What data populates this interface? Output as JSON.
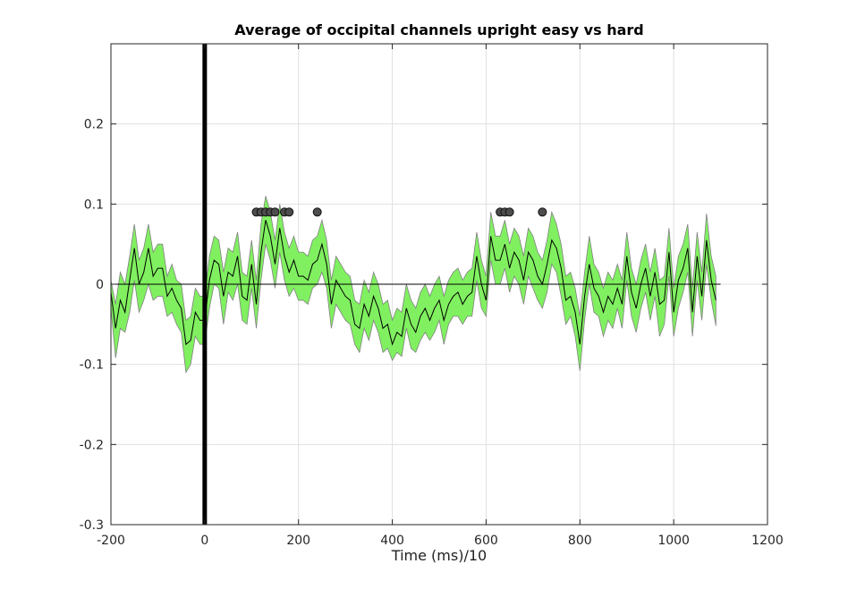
{
  "chart_data": {
    "type": "line",
    "title": "Average of occipital channels upright easy vs hard",
    "xlabel": "Time (ms)/10",
    "ylabel": "",
    "xlim": [
      -200,
      1200
    ],
    "ylim": [
      -0.3,
      0.3
    ],
    "xticks": [
      -200,
      0,
      200,
      400,
      600,
      800,
      1000,
      1200
    ],
    "xtick_labels": [
      "-200",
      "0",
      "200",
      "400",
      "600",
      "800",
      "1000",
      "1200"
    ],
    "yticks": [
      -0.3,
      -0.2,
      -0.1,
      0,
      0.1,
      0.2
    ],
    "ytick_labels": [
      "-0.3",
      "-0.2",
      "-0.1",
      "0",
      "0.1",
      "0.2"
    ],
    "grid": true,
    "zero_line": 0,
    "onset_line_x": 0,
    "x": [
      -200,
      -190,
      -180,
      -170,
      -160,
      -150,
      -140,
      -130,
      -120,
      -110,
      -100,
      -90,
      -80,
      -70,
      -60,
      -50,
      -40,
      -30,
      -20,
      -10,
      0,
      10,
      20,
      30,
      40,
      50,
      60,
      70,
      80,
      90,
      100,
      110,
      120,
      130,
      140,
      150,
      160,
      170,
      180,
      190,
      200,
      210,
      220,
      230,
      240,
      250,
      260,
      270,
      280,
      290,
      300,
      310,
      320,
      330,
      340,
      350,
      360,
      370,
      380,
      390,
      400,
      410,
      420,
      430,
      440,
      450,
      460,
      470,
      480,
      490,
      500,
      510,
      520,
      530,
      540,
      550,
      560,
      570,
      580,
      590,
      600,
      610,
      620,
      630,
      640,
      650,
      660,
      670,
      680,
      690,
      700,
      710,
      720,
      730,
      740,
      750,
      760,
      770,
      780,
      790,
      800,
      810,
      820,
      830,
      840,
      850,
      860,
      870,
      880,
      890,
      900,
      910,
      920,
      930,
      940,
      950,
      960,
      970,
      980,
      990,
      1000,
      1010,
      1020,
      1030,
      1040,
      1050,
      1060,
      1070,
      1080,
      1090
    ],
    "series": [
      {
        "type": "line",
        "color": "#000000",
        "values": [
          -0.01,
          -0.055,
          -0.02,
          -0.035,
          0.005,
          0.045,
          0.0,
          0.015,
          0.045,
          0.01,
          0.02,
          0.02,
          -0.015,
          -0.005,
          -0.02,
          -0.03,
          -0.075,
          -0.07,
          -0.035,
          -0.045,
          -0.045,
          0.005,
          0.03,
          0.025,
          -0.015,
          0.015,
          0.01,
          0.035,
          -0.015,
          -0.02,
          0.025,
          -0.025,
          0.04,
          0.08,
          0.06,
          0.025,
          0.07,
          0.035,
          0.015,
          0.03,
          0.01,
          0.01,
          0.005,
          0.025,
          0.03,
          0.05,
          0.025,
          -0.025,
          0.005,
          -0.005,
          -0.015,
          -0.02,
          -0.05,
          -0.055,
          -0.025,
          -0.04,
          -0.015,
          -0.03,
          -0.055,
          -0.05,
          -0.075,
          -0.06,
          -0.065,
          -0.03,
          -0.05,
          -0.06,
          -0.04,
          -0.03,
          -0.045,
          -0.03,
          -0.02,
          -0.045,
          -0.025,
          -0.015,
          -0.01,
          -0.025,
          -0.015,
          -0.01,
          0.035,
          0.0,
          -0.02,
          0.06,
          0.03,
          0.03,
          0.05,
          0.02,
          0.04,
          0.03,
          0.005,
          0.04,
          0.03,
          0.01,
          0.0,
          0.025,
          0.055,
          0.045,
          0.02,
          -0.02,
          -0.015,
          -0.035,
          -0.075,
          -0.015,
          0.025,
          -0.005,
          -0.015,
          -0.035,
          -0.015,
          -0.025,
          -0.005,
          -0.025,
          0.035,
          -0.01,
          -0.03,
          0.0,
          0.02,
          -0.015,
          0.015,
          -0.025,
          -0.02,
          0.04,
          -0.035,
          0.005,
          0.02,
          0.045,
          -0.035,
          0.035,
          -0.015,
          0.055,
          0.005,
          -0.02
        ],
        "lower": [
          -0.03,
          -0.092,
          -0.055,
          -0.06,
          -0.035,
          0.005,
          -0.035,
          -0.02,
          0.0,
          -0.02,
          -0.015,
          -0.015,
          -0.04,
          -0.035,
          -0.05,
          -0.06,
          -0.11,
          -0.1,
          -0.065,
          -0.075,
          -0.075,
          -0.03,
          0.0,
          -0.005,
          -0.05,
          -0.01,
          -0.02,
          0.0,
          -0.045,
          -0.05,
          -0.005,
          -0.055,
          0.005,
          0.05,
          0.03,
          -0.005,
          0.04,
          0.005,
          -0.015,
          -0.005,
          -0.02,
          -0.02,
          -0.025,
          -0.005,
          0.0,
          0.015,
          -0.005,
          -0.055,
          -0.025,
          -0.035,
          -0.045,
          -0.05,
          -0.075,
          -0.085,
          -0.055,
          -0.07,
          -0.045,
          -0.06,
          -0.085,
          -0.08,
          -0.095,
          -0.085,
          -0.09,
          -0.055,
          -0.08,
          -0.085,
          -0.07,
          -0.06,
          -0.07,
          -0.06,
          -0.045,
          -0.075,
          -0.05,
          -0.04,
          -0.04,
          -0.05,
          -0.04,
          -0.04,
          0.005,
          -0.03,
          -0.04,
          0.03,
          0.0,
          0.0,
          0.02,
          -0.01,
          0.01,
          0.0,
          -0.025,
          0.01,
          -0.005,
          -0.02,
          -0.03,
          -0.01,
          0.025,
          0.015,
          -0.015,
          -0.05,
          -0.04,
          -0.065,
          -0.108,
          -0.045,
          0.0,
          -0.035,
          -0.04,
          -0.065,
          -0.045,
          -0.055,
          -0.03,
          -0.055,
          0.005,
          -0.04,
          -0.06,
          -0.03,
          -0.01,
          -0.045,
          -0.015,
          -0.065,
          -0.05,
          0.01,
          -0.065,
          -0.03,
          -0.01,
          0.015,
          -0.065,
          0.005,
          -0.045,
          0.025,
          -0.02,
          -0.052
        ],
        "upper": [
          0.005,
          -0.025,
          0.015,
          0.0,
          0.035,
          0.075,
          0.03,
          0.045,
          0.075,
          0.04,
          0.05,
          0.05,
          0.01,
          0.025,
          0.005,
          0.0,
          -0.045,
          -0.04,
          -0.005,
          -0.015,
          -0.015,
          0.035,
          0.06,
          0.055,
          0.015,
          0.045,
          0.04,
          0.065,
          0.015,
          0.01,
          0.055,
          0.005,
          0.075,
          0.11,
          0.09,
          0.055,
          0.1,
          0.065,
          0.045,
          0.06,
          0.04,
          0.04,
          0.035,
          0.055,
          0.06,
          0.08,
          0.055,
          0.005,
          0.035,
          0.025,
          0.015,
          0.01,
          -0.02,
          -0.025,
          0.005,
          -0.01,
          0.015,
          0.0,
          -0.025,
          -0.02,
          -0.045,
          -0.03,
          -0.035,
          0.0,
          -0.02,
          -0.03,
          -0.01,
          0.0,
          -0.015,
          0.0,
          0.01,
          -0.015,
          0.005,
          0.015,
          0.02,
          0.005,
          0.015,
          0.02,
          0.065,
          0.03,
          0.01,
          0.09,
          0.06,
          0.06,
          0.08,
          0.05,
          0.07,
          0.06,
          0.035,
          0.07,
          0.06,
          0.04,
          0.03,
          0.055,
          0.09,
          0.075,
          0.05,
          0.01,
          0.015,
          -0.005,
          -0.04,
          0.015,
          0.06,
          0.025,
          0.015,
          -0.005,
          0.015,
          0.005,
          0.025,
          0.005,
          0.065,
          0.02,
          0.0,
          0.03,
          0.05,
          0.015,
          0.045,
          0.005,
          0.01,
          0.07,
          -0.005,
          0.035,
          0.05,
          0.075,
          -0.005,
          0.065,
          0.015,
          0.088,
          0.035,
          0.01
        ]
      },
      {
        "type": "scatter",
        "color": "#4d4d4d",
        "x": [
          110,
          120,
          130,
          140,
          150,
          170,
          180,
          240,
          630,
          640,
          650,
          720
        ],
        "y": [
          0.09,
          0.09,
          0.09,
          0.09,
          0.09,
          0.09,
          0.09,
          0.09,
          0.09,
          0.09,
          0.09,
          0.09
        ]
      }
    ],
    "band_color": "#80f060",
    "band_edge_color": "#808080"
  }
}
